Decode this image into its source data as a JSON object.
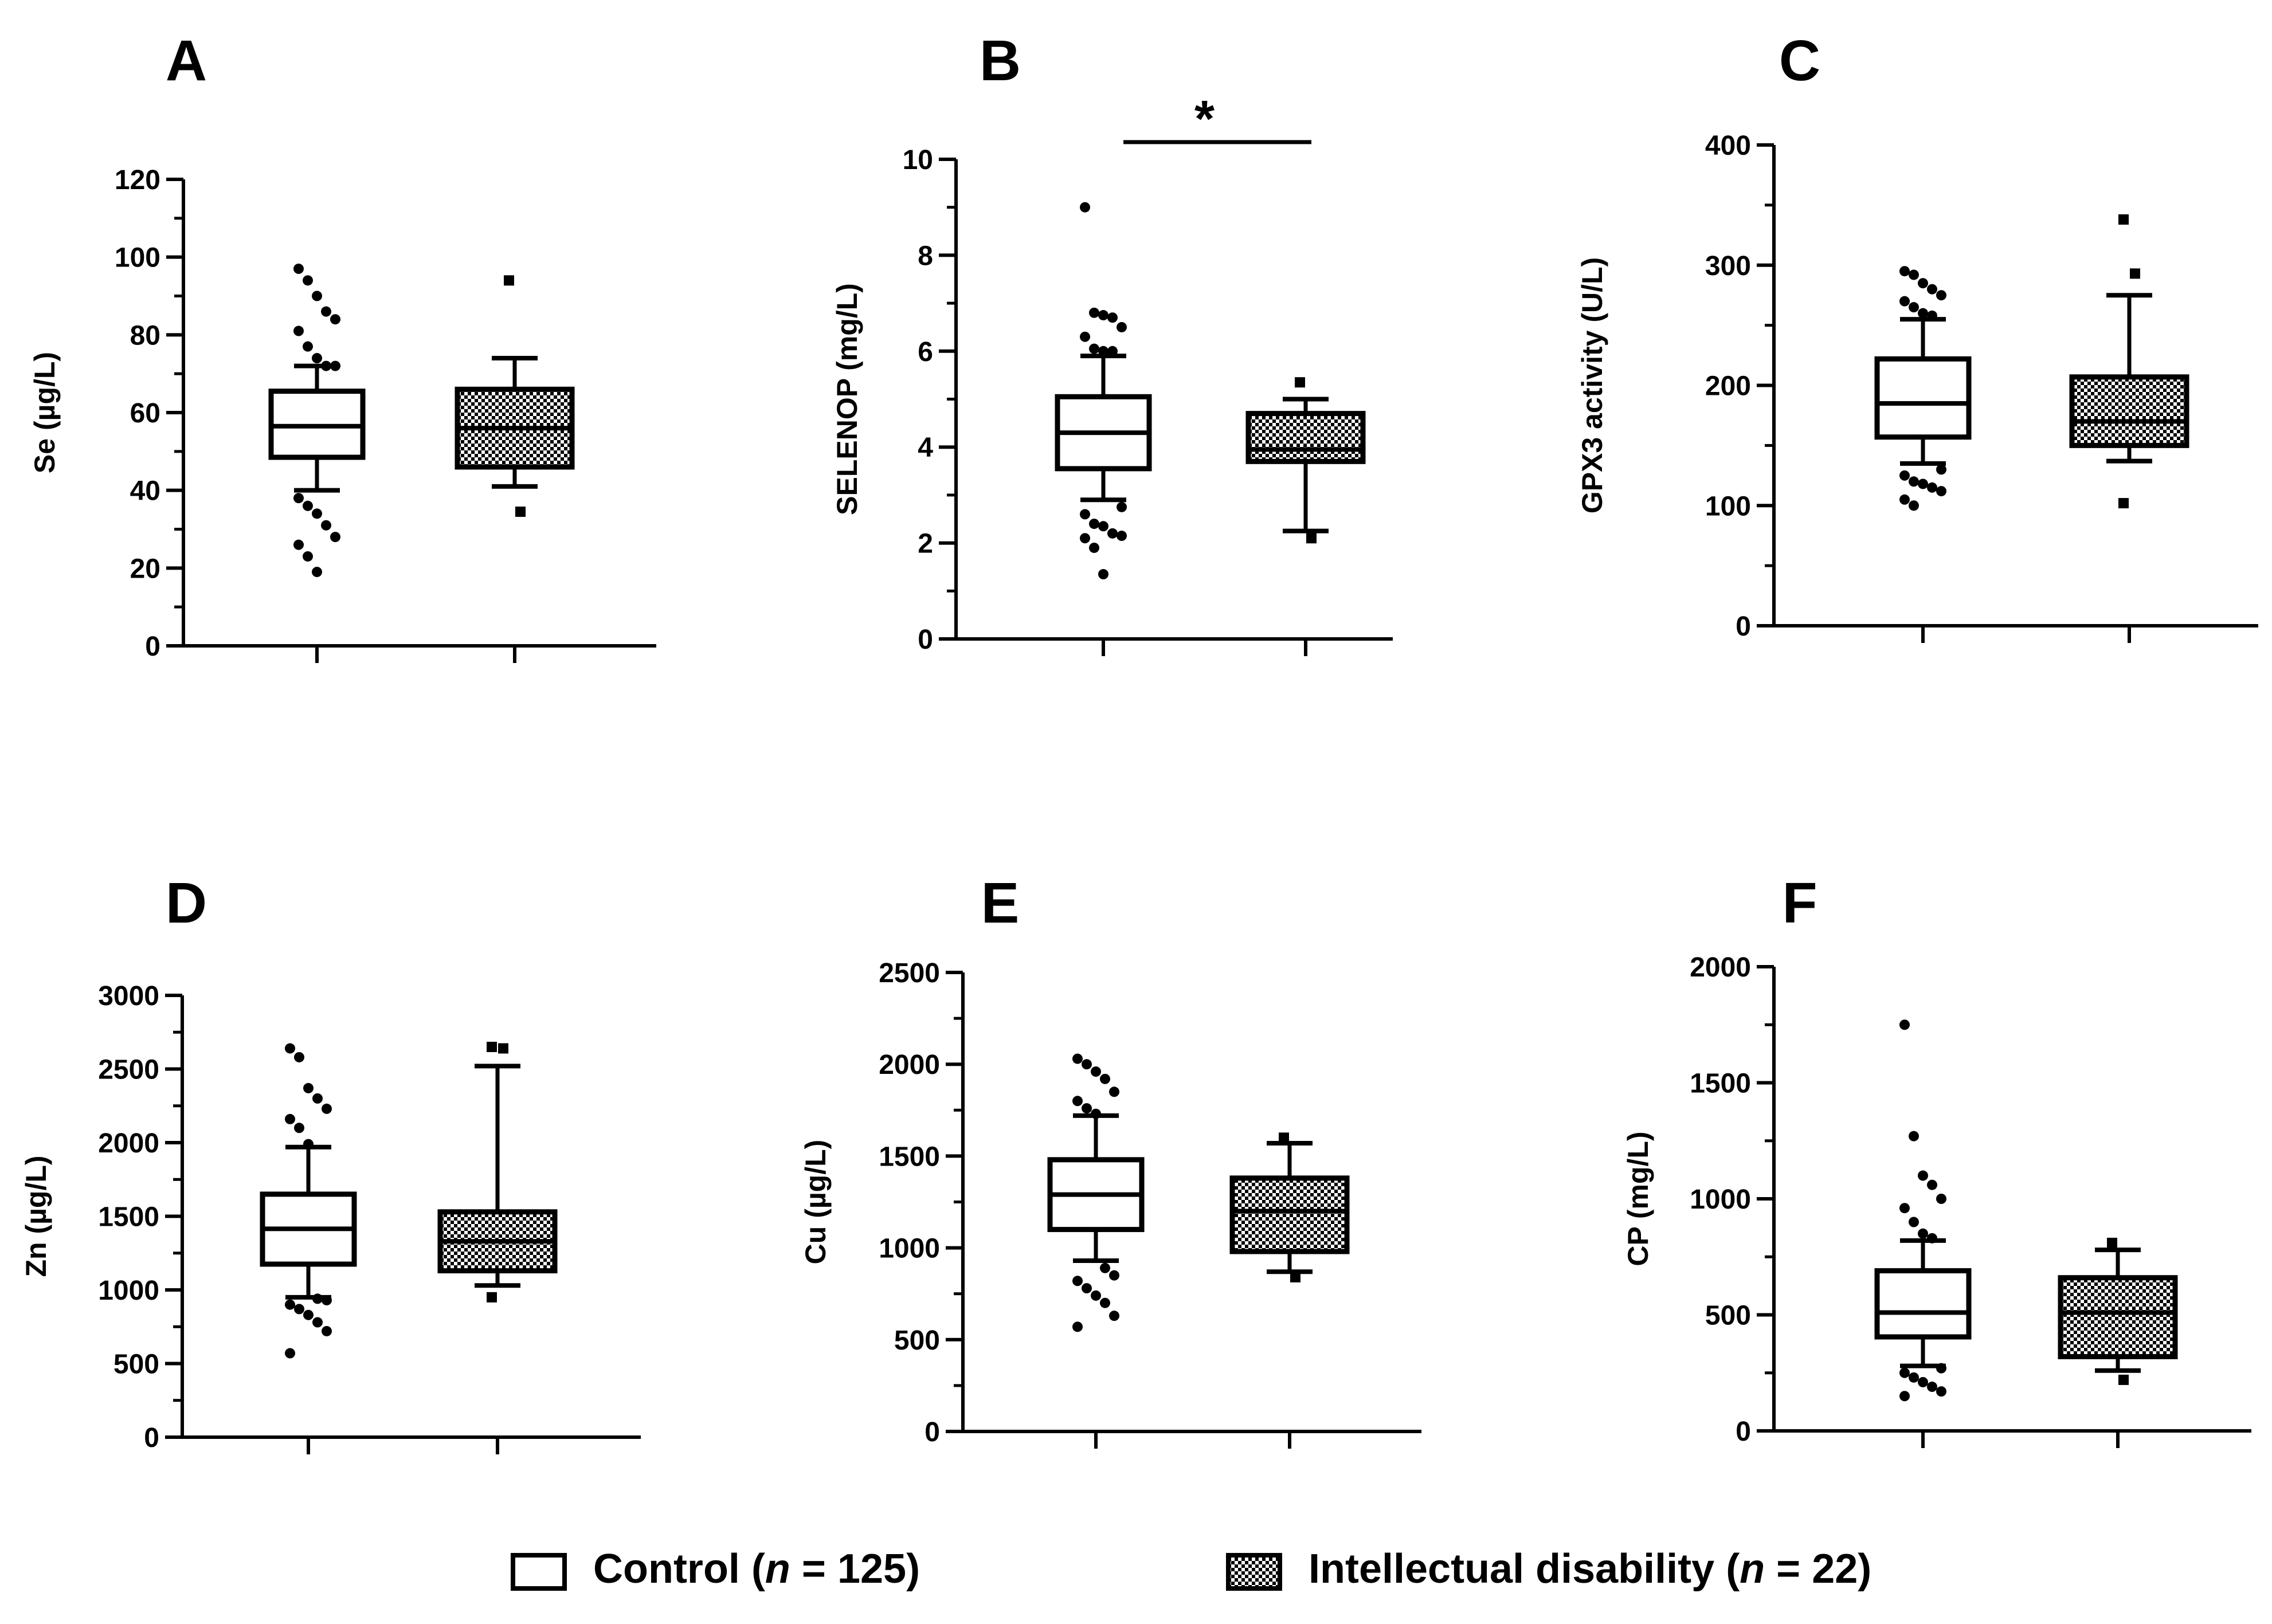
{
  "colors": {
    "ink": "#000000",
    "control_fill": "#ffffff",
    "id_fill": "#9a9a9a"
  },
  "legend": [
    {
      "name": "Control",
      "prefix": "Control (",
      "n_italic": "n",
      "suffix": " = 125)",
      "fill": "pattern-none"
    },
    {
      "name": "Intellectual disability",
      "prefix": "Intellectual disability (",
      "n_italic": "n",
      "suffix": " = 22)",
      "fill": "pattern-dots"
    }
  ],
  "chart_data": [
    {
      "type": "box",
      "panel": "A",
      "ylabel": "Se (µg/L)",
      "ylim": [
        0,
        120
      ],
      "yticks": [
        0,
        20,
        40,
        60,
        80,
        100,
        120
      ],
      "minor_step": 10,
      "categories": [
        "Control",
        "Intellectual disability"
      ],
      "series": [
        {
          "name": "Control",
          "q1": 48.5,
          "median": 56.5,
          "q3": 65.5,
          "whisker_low": 40,
          "whisker_high": 72,
          "outliers": [
            97,
            94,
            90,
            86,
            84,
            81,
            77,
            74,
            72,
            72,
            38,
            36,
            34,
            31,
            28,
            26,
            23,
            19
          ]
        },
        {
          "name": "Intellectual disability",
          "q1": 46,
          "median": 56,
          "q3": 66,
          "whisker_low": 41,
          "whisker_high": 74,
          "outliers": [
            94,
            34.5
          ]
        }
      ]
    },
    {
      "type": "box",
      "panel": "B",
      "ylabel": "SELENOP (mg/L)",
      "ylim": [
        0,
        10
      ],
      "yticks": [
        0,
        2,
        4,
        6,
        8,
        10
      ],
      "minor_step": 1,
      "categories": [
        "Control",
        "Intellectual disability"
      ],
      "significance": "*",
      "series": [
        {
          "name": "Control",
          "q1": 3.55,
          "median": 4.3,
          "q3": 5.05,
          "whisker_low": 2.9,
          "whisker_high": 5.9,
          "outliers": [
            9.0,
            6.8,
            6.75,
            6.7,
            6.5,
            6.3,
            6.05,
            6.0,
            6.0,
            2.75,
            2.6,
            2.4,
            2.35,
            2.2,
            2.15,
            2.1,
            1.9,
            1.35
          ]
        },
        {
          "name": "Intellectual disability",
          "q1": 3.7,
          "median": 3.95,
          "q3": 4.7,
          "whisker_low": 2.25,
          "whisker_high": 5.0,
          "outliers": [
            5.35,
            2.1
          ]
        }
      ]
    },
    {
      "type": "box",
      "panel": "C",
      "ylabel": "GPX3 activity (U/L)",
      "ylim": [
        0,
        400
      ],
      "yticks": [
        0,
        100,
        200,
        300,
        400
      ],
      "minor_step": 50,
      "categories": [
        "Control",
        "Intellectual disability"
      ],
      "series": [
        {
          "name": "Control",
          "q1": 157,
          "median": 185,
          "q3": 222,
          "whisker_low": 135,
          "whisker_high": 255,
          "outliers": [
            295,
            292,
            285,
            280,
            275,
            270,
            265,
            260,
            258,
            130,
            125,
            120,
            118,
            115,
            112,
            105,
            100
          ]
        },
        {
          "name": "Intellectual disability",
          "q1": 150,
          "median": 170,
          "q3": 207,
          "whisker_low": 137,
          "whisker_high": 275,
          "outliers": [
            338,
            293,
            102
          ]
        }
      ]
    },
    {
      "type": "box",
      "panel": "D",
      "ylabel": "Zn (µg/L)",
      "ylim": [
        0,
        3000
      ],
      "yticks": [
        0,
        500,
        1000,
        1500,
        2000,
        2500,
        3000
      ],
      "minor_step": 250,
      "categories": [
        "Control",
        "Intellectual disability"
      ],
      "series": [
        {
          "name": "Control",
          "q1": 1175,
          "median": 1415,
          "q3": 1650,
          "whisker_low": 950,
          "whisker_high": 1970,
          "outliers": [
            2640,
            2580,
            2370,
            2300,
            2230,
            2160,
            2100,
            1990,
            940,
            930,
            900,
            870,
            830,
            780,
            720,
            570
          ]
        },
        {
          "name": "Intellectual disability",
          "q1": 1130,
          "median": 1330,
          "q3": 1530,
          "whisker_low": 1030,
          "whisker_high": 2520,
          "outliers": [
            2650,
            2640,
            950
          ]
        }
      ]
    },
    {
      "type": "box",
      "panel": "E",
      "ylabel": "Cu (µg/L)",
      "ylim": [
        0,
        2500
      ],
      "yticks": [
        0,
        500,
        1000,
        1500,
        2000,
        2500
      ],
      "minor_step": 250,
      "categories": [
        "Control",
        "Intellectual disability"
      ],
      "series": [
        {
          "name": "Control",
          "q1": 1100,
          "median": 1290,
          "q3": 1480,
          "whisker_low": 930,
          "whisker_high": 1720,
          "outliers": [
            2030,
            2000,
            1960,
            1920,
            1850,
            1800,
            1760,
            1730,
            890,
            850,
            820,
            780,
            740,
            700,
            630,
            570
          ]
        },
        {
          "name": "Intellectual disability",
          "q1": 980,
          "median": 1200,
          "q3": 1380,
          "whisker_low": 870,
          "whisker_high": 1570,
          "outliers": [
            1600,
            840
          ]
        }
      ]
    },
    {
      "type": "box",
      "panel": "F",
      "ylabel": "CP (mg/L)",
      "ylim": [
        0,
        2000
      ],
      "yticks": [
        0,
        500,
        1000,
        1500,
        2000
      ],
      "minor_step": 250,
      "categories": [
        "Control",
        "Intellectual disability"
      ],
      "series": [
        {
          "name": "Control",
          "q1": 405,
          "median": 510,
          "q3": 690,
          "whisker_low": 280,
          "whisker_high": 820,
          "outliers": [
            1750,
            1270,
            1100,
            1060,
            1000,
            960,
            900,
            850,
            830,
            270,
            250,
            230,
            210,
            190,
            170,
            150
          ]
        },
        {
          "name": "Intellectual disability",
          "q1": 320,
          "median": 510,
          "q3": 660,
          "whisker_low": 260,
          "whisker_high": 780,
          "outliers": [
            810,
            220
          ]
        }
      ]
    }
  ]
}
